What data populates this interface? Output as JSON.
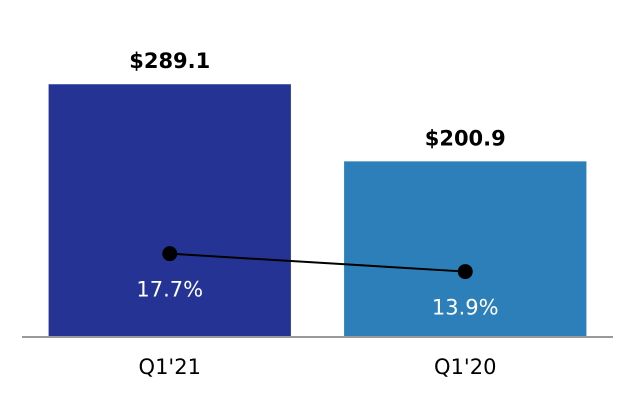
{
  "chart_data": {
    "type": "bar",
    "categories": [
      "Q1'21",
      "Q1'20"
    ],
    "series": [
      {
        "type": "bar",
        "colors": [
          "#253494",
          "#2c7fb8"
        ],
        "values": [
          289.1,
          200.9
        ],
        "value_labels": [
          "$289.1",
          "$200.9"
        ]
      },
      {
        "type": "line",
        "axis": "y2",
        "color": "#000000",
        "values": [
          17.7,
          13.9
        ],
        "value_labels": [
          "17.7%",
          "13.9%"
        ]
      }
    ],
    "ylim": [
      0,
      350
    ],
    "y2lim": [
      0,
      65
    ]
  }
}
